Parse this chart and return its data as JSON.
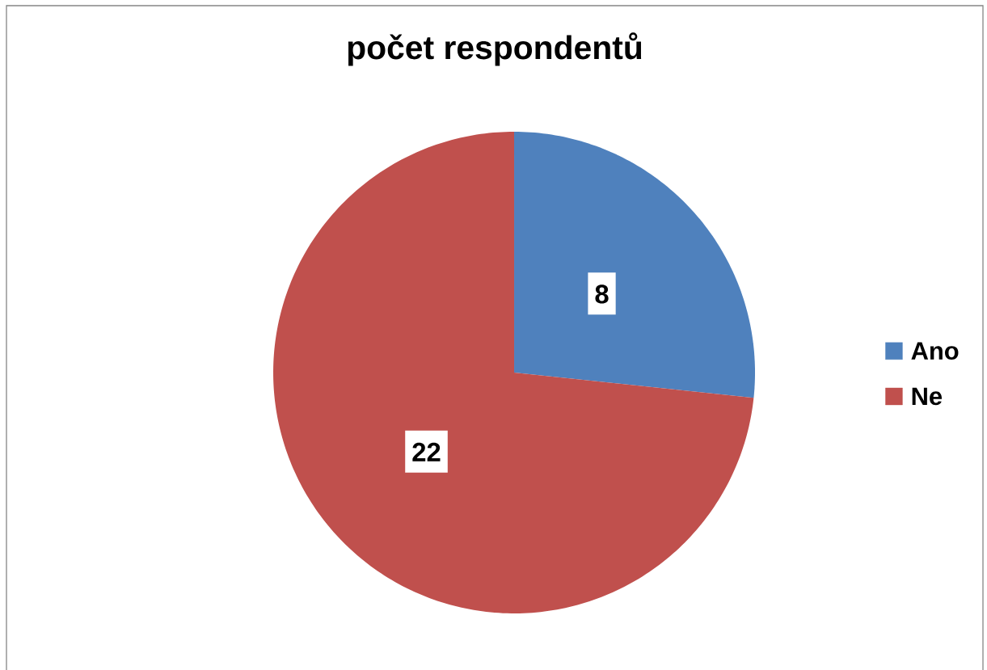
{
  "chart_data": {
    "type": "pie",
    "title": "počet respondentů",
    "categories": [
      "Ano",
      "Ne"
    ],
    "values": [
      8,
      22
    ],
    "colors": [
      "#4f81bd",
      "#c0504d"
    ],
    "data_labels": true,
    "legend": "right"
  }
}
